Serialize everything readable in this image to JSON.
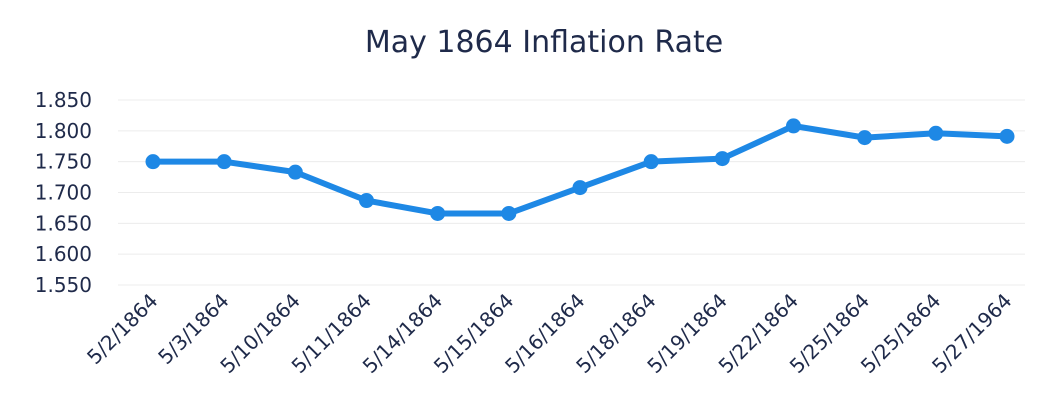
{
  "chart_data": {
    "type": "line",
    "title": "May 1864 Inflation Rate",
    "xlabel": "",
    "ylabel": "",
    "categories": [
      "5/2/1864",
      "5/3/1864",
      "5/10/1864",
      "5/11/1864",
      "5/14/1864",
      "5/15/1864",
      "5/16/1864",
      "5/18/1864",
      "5/19/1864",
      "5/22/1864",
      "5/25/1864",
      "5/25/1864",
      "5/27/1964"
    ],
    "y_ticks": [
      "1.850",
      "1.800",
      "1.750",
      "1.700",
      "1.650",
      "1.600",
      "1.550"
    ],
    "ylim": [
      1.55,
      1.85
    ],
    "grid": true,
    "legend": "none",
    "series": [
      {
        "color": "#1e88e5",
        "values": [
          1.75,
          1.75,
          1.733,
          1.687,
          1.666,
          1.666,
          1.708,
          1.75,
          1.755,
          1.808,
          1.789,
          1.796,
          1.791
        ]
      }
    ]
  }
}
